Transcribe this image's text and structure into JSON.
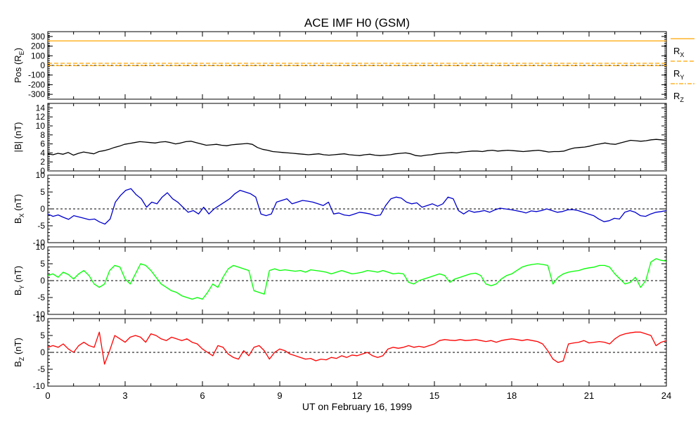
{
  "chart_data": [
    {
      "type": "line",
      "title": "ACE IMF H0 (GSM)",
      "ylabel": [
        "Pos (R",
        "E",
        ")"
      ],
      "ylim": [
        -350,
        350
      ],
      "yticks": [
        300,
        200,
        100,
        0,
        -100,
        -200,
        -300
      ],
      "xlim": [
        0,
        24
      ],
      "zero_line": true,
      "series": [
        {
          "name": [
            "R",
            "X"
          ],
          "color": "#ffa500",
          "dash": "",
          "values": [
            254.2,
            254.2
          ]
        },
        {
          "name": [
            "R",
            "Y"
          ],
          "color": "#ffa500",
          "dash": "6 3",
          "values": [
            22.1,
            21.9
          ]
        },
        {
          "name": [
            "R",
            "Z"
          ],
          "color": "#ffa500",
          "dash": "6 2 2 2",
          "values": [
            -2.6,
            -2.6
          ]
        }
      ]
    },
    {
      "type": "line",
      "ylabel": [
        "|B| (nT)",
        "",
        ""
      ],
      "ylim": [
        0,
        15
      ],
      "yticks": [
        14,
        12,
        10,
        8,
        6,
        4,
        2,
        0
      ],
      "xlim": [
        0,
        24
      ],
      "zero_line": false,
      "series": [
        {
          "color": "#000000",
          "values": [
            3.8,
            3.6,
            3.9,
            3.7,
            4.1,
            3.5,
            3.9,
            4.2,
            4.0,
            3.8,
            4.3,
            4.5,
            4.8,
            5.2,
            5.5,
            5.9,
            6.1,
            6.3,
            6.5,
            6.4,
            6.3,
            6.2,
            6.4,
            6.5,
            6.3,
            6.0,
            6.2,
            6.5,
            6.6,
            6.3,
            6.0,
            5.7,
            5.8,
            5.9,
            5.7,
            5.6,
            5.8,
            5.9,
            6.0,
            6.1,
            5.9,
            5.2,
            4.8,
            4.6,
            4.3,
            4.2,
            4.1,
            4.0,
            3.9,
            3.8,
            3.7,
            3.6,
            3.7,
            3.8,
            3.6,
            3.5,
            3.6,
            3.7,
            3.8,
            3.6,
            3.5,
            3.4,
            3.6,
            3.7,
            3.5,
            3.4,
            3.5,
            3.6,
            3.8,
            3.9,
            4.0,
            3.8,
            3.4,
            3.3,
            3.5,
            3.6,
            3.8,
            3.9,
            4.0,
            4.1,
            4.0,
            4.2,
            4.3,
            4.4,
            4.4,
            4.3,
            4.5,
            4.6,
            4.4,
            4.5,
            4.6,
            4.5,
            4.4,
            4.3,
            4.4,
            4.5,
            4.6,
            4.4,
            4.2,
            4.3,
            4.3,
            4.4,
            4.8,
            5.1,
            5.2,
            5.3,
            5.5,
            5.8,
            6.0,
            6.2,
            6.0,
            5.9,
            6.2,
            6.5,
            6.8,
            6.7,
            6.6,
            6.7,
            6.9,
            7.0,
            6.9,
            6.8
          ]
        }
      ]
    },
    {
      "type": "line",
      "ylabel": [
        "B",
        "X",
        " (nT)"
      ],
      "ylim": [
        -10,
        10
      ],
      "yticks": [
        10,
        5,
        0,
        -5,
        -10
      ],
      "xlim": [
        0,
        24
      ],
      "zero_line": true,
      "series": [
        {
          "color": "#0000cc",
          "values": [
            -1.5,
            -2.2,
            -1.8,
            -2.5,
            -3.1,
            -2.0,
            -2.4,
            -2.8,
            -3.2,
            -3.0,
            -3.9,
            -4.5,
            -3.0,
            2.0,
            4.0,
            5.5,
            6.0,
            4.2,
            3.0,
            0.5,
            2.0,
            1.5,
            3.5,
            4.8,
            3.0,
            2.0,
            0.5,
            -1.0,
            -0.5,
            -1.5,
            0.5,
            -1.5,
            0.0,
            1.0,
            2.0,
            3.0,
            4.5,
            5.5,
            5.0,
            4.5,
            3.5,
            -1.5,
            -2.0,
            -1.5,
            2.0,
            2.5,
            3.0,
            1.5,
            2.0,
            2.5,
            2.3,
            2.0,
            1.5,
            1.0,
            2.0,
            -1.5,
            -1.2,
            -1.8,
            -2.0,
            -1.5,
            -1.0,
            -1.2,
            -1.5,
            -2.0,
            -1.8,
            1.0,
            3.0,
            3.5,
            3.2,
            2.0,
            1.5,
            1.8,
            0.5,
            1.0,
            1.5,
            0.8,
            1.5,
            3.5,
            3.0,
            -0.5,
            -1.5,
            -0.5,
            -1.0,
            -0.8,
            -0.5,
            -1.0,
            -0.3,
            0.2,
            0.0,
            -0.2,
            -0.5,
            -0.8,
            -1.2,
            -0.6,
            -0.8,
            -0.5,
            0.0,
            -0.5,
            -1.0,
            -0.8,
            -0.3,
            -0.2,
            -0.5,
            -1.0,
            -1.5,
            -2.0,
            -3.0,
            -3.8,
            -3.5,
            -2.8,
            -3.0,
            -1.0,
            -0.5,
            -1.0,
            -2.0,
            -2.2,
            -1.5,
            -1.0,
            -0.8,
            -0.5
          ]
        }
      ]
    },
    {
      "type": "line",
      "ylabel": [
        "B",
        "Y",
        " (nT)"
      ],
      "ylim": [
        -10,
        10
      ],
      "yticks": [
        10,
        5,
        0,
        -5,
        -10
      ],
      "xlim": [
        0,
        24
      ],
      "zero_line": true,
      "series": [
        {
          "color": "#00ff00",
          "values": [
            1.5,
            2.0,
            1.0,
            2.5,
            1.8,
            0.5,
            2.0,
            3.0,
            1.5,
            -1.0,
            -2.0,
            -1.0,
            3.0,
            4.5,
            4.0,
            0.5,
            -1.0,
            2.0,
            5.0,
            4.5,
            3.0,
            1.0,
            -1.0,
            -2.0,
            -3.0,
            -3.5,
            -4.5,
            -5.0,
            -5.5,
            -5.0,
            -5.5,
            -3.5,
            -1.0,
            -2.0,
            1.0,
            3.5,
            4.5,
            4.0,
            3.5,
            3.0,
            -3.0,
            -3.5,
            -4.0,
            3.0,
            3.5,
            3.0,
            3.2,
            3.0,
            2.8,
            3.0,
            2.5,
            3.2,
            3.0,
            2.8,
            2.5,
            2.0,
            2.5,
            3.0,
            2.5,
            2.0,
            2.2,
            2.5,
            3.0,
            2.8,
            2.5,
            3.0,
            2.5,
            2.0,
            2.2,
            2.0,
            -0.5,
            -1.0,
            0.0,
            0.5,
            1.0,
            1.5,
            2.0,
            1.5,
            -0.5,
            0.5,
            1.0,
            1.5,
            2.0,
            2.2,
            1.5,
            -1.0,
            -1.5,
            -1.0,
            0.5,
            1.5,
            2.0,
            3.0,
            4.0,
            4.5,
            4.8,
            5.0,
            4.8,
            4.5,
            -1.0,
            1.0,
            2.0,
            2.5,
            2.8,
            3.0,
            3.5,
            3.8,
            4.0,
            4.5,
            4.5,
            4.0,
            2.0,
            0.5,
            -1.0,
            -0.5,
            1.0,
            -2.0,
            0.0,
            5.5,
            6.5,
            6.0,
            5.8
          ]
        }
      ]
    },
    {
      "type": "line",
      "ylabel": [
        "B",
        "Z",
        " (nT)"
      ],
      "ylim": [
        -10,
        10
      ],
      "yticks": [
        10,
        5,
        0,
        -5,
        -10
      ],
      "xlim": [
        0,
        24
      ],
      "zero_line": true,
      "series": [
        {
          "color": "#ff0000",
          "values": [
            1.5,
            2.0,
            1.5,
            2.5,
            1.0,
            0.0,
            2.0,
            3.0,
            2.0,
            1.5,
            6.0,
            -3.5,
            0.5,
            5.0,
            4.0,
            3.0,
            4.5,
            5.0,
            4.5,
            3.0,
            5.5,
            5.0,
            4.0,
            3.5,
            4.5,
            4.0,
            3.5,
            4.0,
            3.0,
            2.5,
            1.0,
            0.0,
            -1.0,
            2.0,
            1.5,
            -0.5,
            -1.5,
            -2.0,
            0.5,
            -1.0,
            1.5,
            2.0,
            0.5,
            -2.0,
            0.0,
            1.0,
            0.5,
            -0.5,
            -1.0,
            -1.5,
            -2.0,
            -1.8,
            -2.5,
            -2.0,
            -2.2,
            -1.5,
            -1.8,
            -1.0,
            -1.5,
            -0.8,
            -1.0,
            -0.5,
            0.0,
            -1.0,
            -1.5,
            -1.0,
            1.0,
            1.5,
            1.2,
            1.5,
            2.0,
            1.5,
            1.8,
            1.5,
            2.0,
            2.5,
            3.5,
            3.8,
            3.6,
            3.5,
            3.8,
            3.5,
            3.6,
            3.8,
            3.5,
            3.2,
            3.5,
            3.0,
            3.5,
            3.8,
            4.0,
            3.8,
            3.5,
            3.8,
            3.5,
            3.2,
            2.5,
            0.5,
            -2.0,
            -3.0,
            -2.5,
            2.5,
            2.8,
            3.0,
            3.5,
            2.8,
            3.0,
            3.2,
            3.0,
            2.5,
            4.0,
            5.0,
            5.5,
            5.8,
            6.0,
            6.0,
            5.5,
            5.0,
            2.0,
            3.0,
            3.5
          ]
        }
      ]
    }
  ],
  "xaxis": {
    "ticks": [
      0,
      3,
      6,
      9,
      12,
      15,
      18,
      21,
      24
    ],
    "label": "UT on February 16, 1999"
  }
}
